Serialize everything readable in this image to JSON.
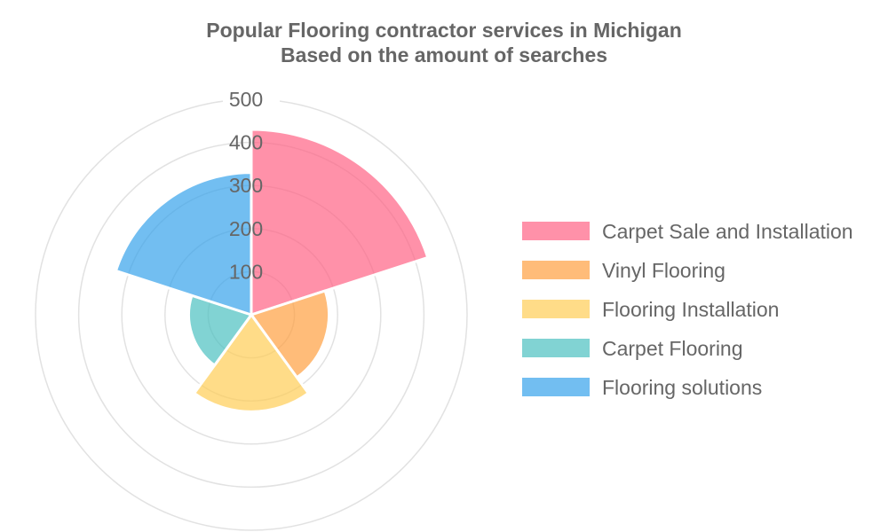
{
  "chart_data": {
    "type": "polarArea",
    "title_lines": [
      "Popular Flooring contractor services in Michigan",
      "Based on the amount of searches"
    ],
    "r_max": 500,
    "r_ticks": [
      100,
      200,
      300,
      400,
      500
    ],
    "categories": [
      "Carpet Sale and Installation",
      "Vinyl Flooring",
      "Flooring Installation",
      "Carpet Flooring",
      "Flooring solutions"
    ],
    "values": [
      430,
      180,
      225,
      145,
      330
    ],
    "colors": [
      "#ff6384",
      "#ff9f40",
      "#ffcd56",
      "#4bc0c0",
      "#36a2eb"
    ],
    "fill_alpha": 0.7,
    "legend_position": "right",
    "grid": true
  }
}
